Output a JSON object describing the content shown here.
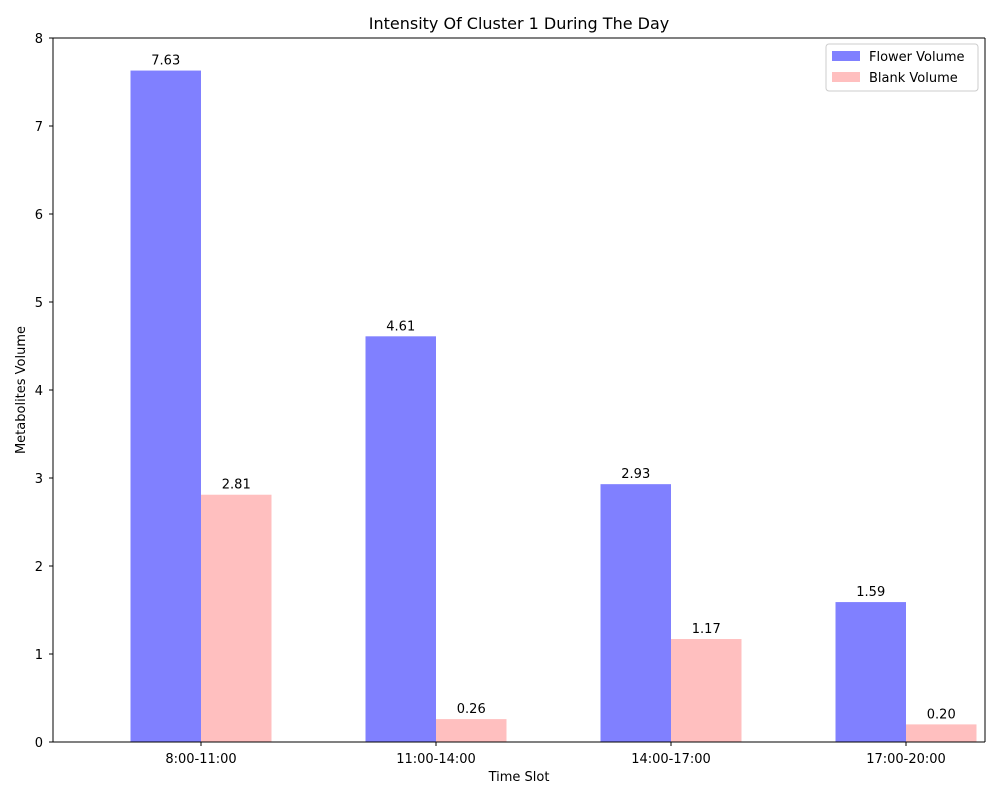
{
  "chart_data": {
    "type": "bar",
    "title": "Intensity Of Cluster 1 During The Day",
    "xlabel": "Time Slot",
    "ylabel": "Metabolites Volume",
    "categories": [
      "8:00-11:00",
      "11:00-14:00",
      "14:00-17:00",
      "17:00-20:00"
    ],
    "series": [
      {
        "name": "Flower Volume",
        "values": [
          7.63,
          4.61,
          2.93,
          1.59
        ],
        "labels": [
          "7.63",
          "4.61",
          "2.93",
          "1.59"
        ],
        "color": "#8080ff"
      },
      {
        "name": "Blank Volume",
        "values": [
          2.81,
          0.26,
          1.17,
          0.2
        ],
        "labels": [
          "2.81",
          "0.26",
          "1.17",
          "0.20"
        ],
        "color": "#ffbfbf"
      }
    ],
    "ylim": [
      0,
      8
    ],
    "yticks": [
      "0",
      "1",
      "2",
      "3",
      "4",
      "5",
      "6",
      "7",
      "8"
    ],
    "legend_position": "top-right",
    "grid": false
  }
}
